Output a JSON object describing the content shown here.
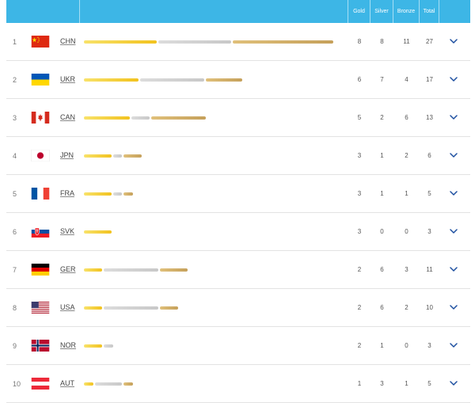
{
  "header": {
    "gold": "Gold",
    "silver": "Silver",
    "bronze": "Bronze",
    "total": "Total"
  },
  "rows": [
    {
      "rank": "1",
      "code": "CHN",
      "gold": "8",
      "silver": "8",
      "bronze": "11",
      "total": "27"
    },
    {
      "rank": "2",
      "code": "UKR",
      "gold": "6",
      "silver": "7",
      "bronze": "4",
      "total": "17"
    },
    {
      "rank": "3",
      "code": "CAN",
      "gold": "5",
      "silver": "2",
      "bronze": "6",
      "total": "13"
    },
    {
      "rank": "4",
      "code": "JPN",
      "gold": "3",
      "silver": "1",
      "bronze": "2",
      "total": "6"
    },
    {
      "rank": "5",
      "code": "FRA",
      "gold": "3",
      "silver": "1",
      "bronze": "1",
      "total": "5"
    },
    {
      "rank": "6",
      "code": "SVK",
      "gold": "3",
      "silver": "0",
      "bronze": "0",
      "total": "3"
    },
    {
      "rank": "7",
      "code": "GER",
      "gold": "2",
      "silver": "6",
      "bronze": "3",
      "total": "11"
    },
    {
      "rank": "8",
      "code": "USA",
      "gold": "2",
      "silver": "6",
      "bronze": "2",
      "total": "10"
    },
    {
      "rank": "9",
      "code": "NOR",
      "gold": "2",
      "silver": "1",
      "bronze": "0",
      "total": "3"
    },
    {
      "rank": "10",
      "code": "AUT",
      "gold": "1",
      "silver": "3",
      "bronze": "1",
      "total": "5"
    }
  ],
  "colors": {
    "header": "#3db6e6",
    "chevron": "#1d4fa0",
    "gold": "#f2c21e",
    "silver": "#cccccc",
    "bronze": "#c9a45e"
  },
  "icons": {
    "expand": "chevron-down-icon"
  }
}
